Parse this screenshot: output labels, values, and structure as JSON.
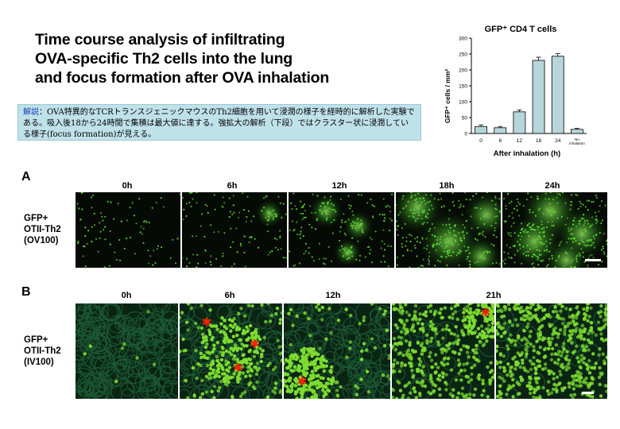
{
  "title": "Time course analysis of infiltrating OVA-specific Th2 cells into the lung and focus formation after OVA inhalation",
  "title_lines": [
    "Time course analysis of infiltrating",
    "OVA-specific Th2 cells into the lung",
    "and focus formation after OVA inhalation"
  ],
  "note": {
    "key": "解説",
    "sep": "：",
    "text": "OVA特異的なTCRトランスジェニックマウスのTh2細胞を用いて浸潤の様子を経時的に解析した実験である。吸入後18から24時間で集積は最大値に達する。強拡大の解析（下段）ではクラスター状に浸潤している様子(focus formation)が見える。"
  },
  "chart_data": {
    "type": "bar",
    "title": "GFP⁺ CD4 T cells",
    "xlabel": "After inhalation (h)",
    "ylabel": "GFP⁺ cells / mm²",
    "ylim": [
      0,
      300
    ],
    "yticks": [
      0,
      50,
      100,
      150,
      200,
      250,
      300
    ],
    "categories": [
      "0",
      "6",
      "12",
      "18",
      "24",
      "No inhalation"
    ],
    "values": [
      22,
      18,
      68,
      230,
      243,
      13
    ],
    "errors": [
      5,
      4,
      6,
      10,
      8,
      3
    ]
  },
  "panelA": {
    "letter": "A",
    "row_label": [
      "GFP+",
      "OTII-Th2",
      "(OV100)"
    ],
    "times": [
      "0h",
      "6h",
      "12h",
      "18h",
      "24h"
    ]
  },
  "panelB": {
    "letter": "B",
    "row_label": [
      "GFP+",
      "OTII-Th2",
      "(IV100)"
    ],
    "times": [
      "0h",
      "6h",
      "12h",
      "21h"
    ]
  },
  "colors": {
    "note_bg": "#bfe1e9",
    "bar_fill": "#b8d6da",
    "gfp_green": "#66cc33",
    "marker_red": "#ff2200"
  }
}
